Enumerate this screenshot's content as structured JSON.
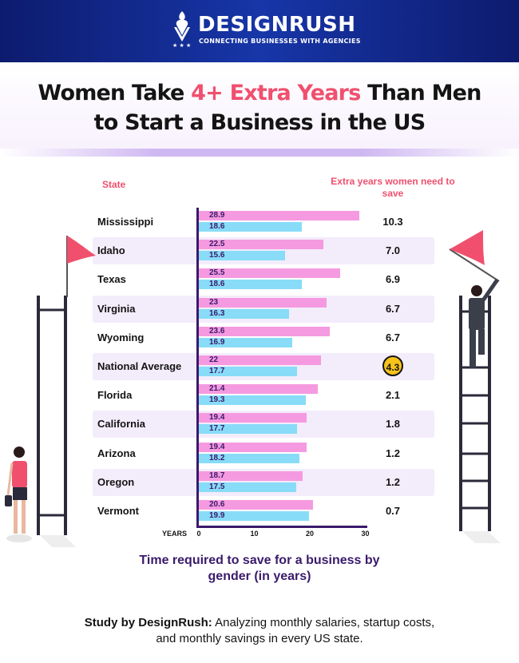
{
  "header": {
    "brand": "DESIGNRUSH",
    "tagline": "CONNECTING BUSINESSES WITH AGENCIES",
    "bg_color": "#1736a8"
  },
  "title": {
    "line1_pre": "Women Take ",
    "line1_highlight": "4+ Extra Years",
    "line1_post": " Than Men",
    "line2": "to Start a Business in the US",
    "highlight_color": "#f0506e"
  },
  "column_headers": {
    "state": "State",
    "extra": "Extra years women need to save"
  },
  "caption": "Time required to save for a business by gender (in years)",
  "footer": {
    "bold": "Study by DesignRush:",
    "text": " Analyzing monthly salaries, startup costs, and monthly savings in every US state."
  },
  "chart_data": {
    "type": "bar",
    "orientation": "horizontal",
    "categories": [
      "Mississippi",
      "Idaho",
      "Texas",
      "Virginia",
      "Wyoming",
      "National Average",
      "Florida",
      "California",
      "Arizona",
      "Oregon",
      "Vermont"
    ],
    "series": [
      {
        "values": [
          28.9,
          22.5,
          25.5,
          23,
          23.6,
          22,
          21.4,
          19.4,
          19.4,
          18.7,
          20.6
        ],
        "color": "#f59ae0"
      },
      {
        "values": [
          18.6,
          15.6,
          18.6,
          16.3,
          16.9,
          17.7,
          19.3,
          17.7,
          18.2,
          17.5,
          19.9
        ],
        "color": "#88dcf8"
      }
    ],
    "value_labels": {
      "women": [
        "28.9",
        "22.5",
        "25.5",
        "23",
        "23.6",
        "22",
        "21.4",
        "19.4",
        "19.4",
        "18.7",
        "20.6"
      ],
      "men": [
        "18.6",
        "15.6",
        "18.6",
        "16.3",
        "16.9",
        "17.7",
        "19.3",
        "17.7",
        "18.2",
        "17.5",
        "19.9"
      ]
    },
    "extra_years": [
      "10.3",
      "7.0",
      "6.9",
      "6.7",
      "6.7",
      "4.3",
      "2.1",
      "1.8",
      "1.2",
      "1.2",
      "0.7"
    ],
    "highlighted_category": "National Average",
    "highlight_color": "#f7c21a",
    "xlabel": "YEARS",
    "xlim": [
      0,
      30
    ],
    "xticks": [
      "0",
      "10",
      "20",
      "30"
    ]
  }
}
